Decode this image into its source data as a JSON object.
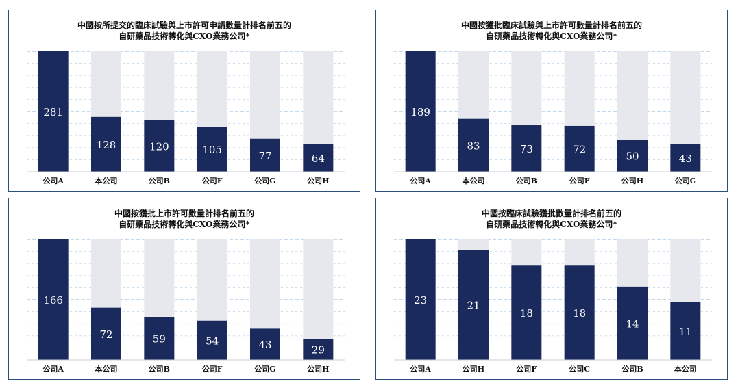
{
  "colors": {
    "bar": "#1b2a5c",
    "track": "#e6e8ee",
    "grid": "#a9c9e6",
    "frame": "#2e4d83",
    "axis": "#c8ccd4"
  },
  "chart_data": [
    {
      "type": "bar",
      "title_lines": [
        "中國按所提交的臨床試驗與上市許可申請數量計排名前五的",
        "自研藥品技術轉化與CXO業務公司*"
      ],
      "categories": [
        "公司A",
        "本公司",
        "公司B",
        "公司F",
        "公司G",
        "公司H"
      ],
      "values": [
        281,
        128,
        120,
        105,
        77,
        64
      ],
      "ylim": [
        0,
        281
      ],
      "grid": true,
      "legend": "none"
    },
    {
      "type": "bar",
      "title_lines": [
        "中國按獲批臨床試驗與上市許可數量計排名前五的",
        "自研藥品技術轉化與CXO業務公司*"
      ],
      "categories": [
        "公司A",
        "本公司",
        "公司B",
        "公司F",
        "公司H",
        "公司G"
      ],
      "values": [
        189,
        83,
        73,
        72,
        50,
        43
      ],
      "ylim": [
        0,
        189
      ],
      "grid": true,
      "legend": "none"
    },
    {
      "type": "bar",
      "title_lines": [
        "中國按獲批上市許可數量計排名前五的",
        "自研藥品技術轉化與CXO業務公司*"
      ],
      "categories": [
        "公司A",
        "本公司",
        "公司B",
        "公司F",
        "公司G",
        "公司H"
      ],
      "values": [
        166,
        72,
        59,
        54,
        43,
        29
      ],
      "ylim": [
        0,
        166
      ],
      "grid": true,
      "legend": "none"
    },
    {
      "type": "bar",
      "title_lines": [
        "中國按臨床試驗獲批數量計排名前五的",
        "自研藥品技術轉化與CXO業務公司*"
      ],
      "categories": [
        "公司A",
        "公司H",
        "公司F",
        "公司C",
        "公司B",
        "本公司"
      ],
      "values": [
        23,
        21,
        18,
        18,
        14,
        11
      ],
      "ylim": [
        0,
        23
      ],
      "grid": true,
      "legend": "none"
    }
  ]
}
